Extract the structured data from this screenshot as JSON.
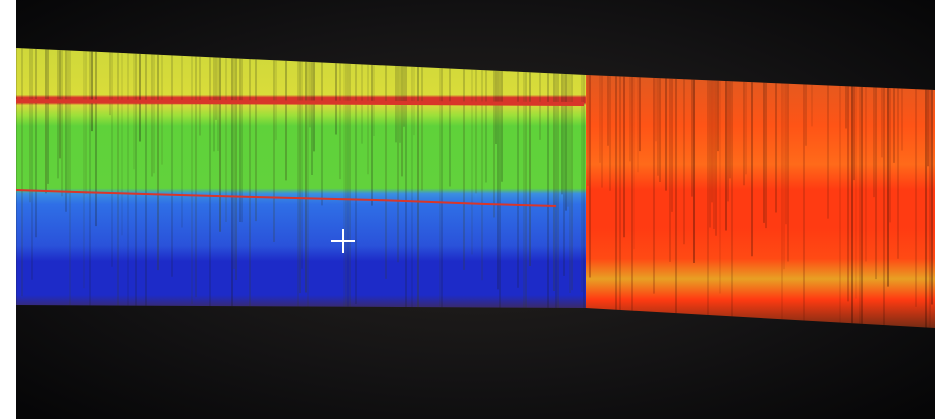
{
  "scene": {
    "subject": "photo-of-monitor-showing-colorized-radargram",
    "colors": {
      "background": "#0e0e10",
      "screen_glow": "#2a2622",
      "yellow_band": "#d9dc3a",
      "red_stripe": "#d8362a",
      "green_band": "#5fd23a",
      "blue_band_light": "#2f6fe6",
      "blue_band_dark": "#1d2bc8",
      "red_region": "#ff3b12",
      "orange_region": "#ff6a1a",
      "cursor": "#ffffff"
    },
    "icons": {
      "cursor": "crosshair-cursor-icon"
    }
  }
}
